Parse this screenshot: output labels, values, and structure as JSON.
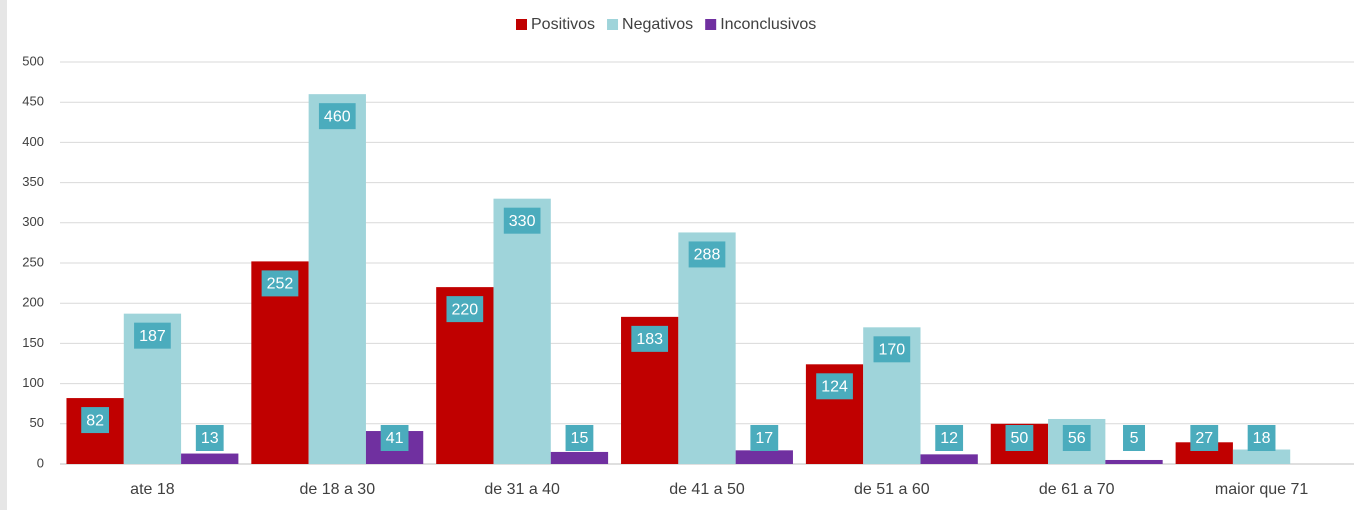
{
  "chart_data": {
    "type": "bar",
    "categories": [
      "ate 18",
      "de 18 a 30",
      "de 31 a 40",
      "de 41 a 50",
      "de 51 a 60",
      "de 61 a 70",
      "maior que 71"
    ],
    "series": [
      {
        "name": "Positivos",
        "color": "#c00000",
        "values": [
          82,
          252,
          220,
          183,
          124,
          50,
          27
        ]
      },
      {
        "name": "Negativos",
        "color": "#9fd4da",
        "values": [
          187,
          460,
          330,
          288,
          170,
          56,
          18
        ]
      },
      {
        "name": "Inconclusivos",
        "color": "#7030a0",
        "values": [
          13,
          41,
          15,
          17,
          12,
          5,
          null
        ]
      }
    ],
    "ylim": [
      0,
      500
    ],
    "yticks": [
      0,
      50,
      100,
      150,
      200,
      250,
      300,
      350,
      400,
      450,
      500
    ],
    "grid": true,
    "legend": "top",
    "label_color": "#4bacbd"
  }
}
